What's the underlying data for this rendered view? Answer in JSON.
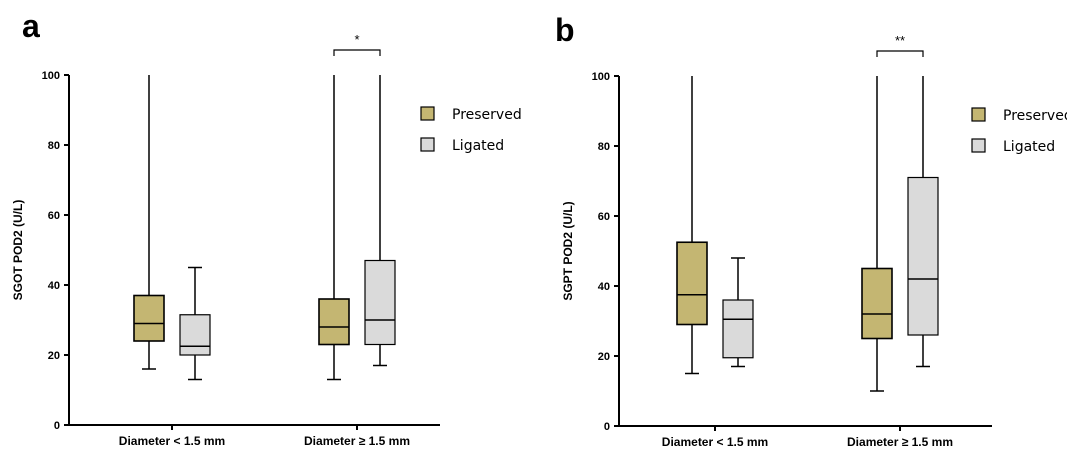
{
  "chart_data": [
    {
      "type": "box",
      "panel_letter": "a",
      "ylabel": "SGOT POD2 (U/L)",
      "ylim": [
        0,
        100
      ],
      "yticks": [
        "0",
        "20",
        "40",
        "60",
        "80",
        "100"
      ],
      "categories": [
        "Diameter < 1.5 mm",
        "Diameter ≥ 1.5 mm"
      ],
      "series": [
        {
          "name": "Preserved",
          "color": "#c4b672",
          "boxes": [
            {
              "min": 16,
              "q1": 24,
              "median": 29,
              "q3": 37,
              "max": 100
            },
            {
              "min": 13,
              "q1": 23,
              "median": 28,
              "q3": 36,
              "max": 100
            }
          ]
        },
        {
          "name": "Ligated",
          "color": "#dadada",
          "boxes": [
            {
              "min": 13,
              "q1": 20,
              "median": 22.5,
              "q3": 31.5,
              "max": 45
            },
            {
              "min": 17,
              "q1": 23,
              "median": 30,
              "q3": 47,
              "max": 100
            }
          ]
        }
      ],
      "significance": [
        {
          "category": 1,
          "label": "*"
        }
      ],
      "legend": {
        "position": "top-right",
        "items": [
          "Preserved",
          "Ligated"
        ]
      }
    },
    {
      "type": "box",
      "panel_letter": "b",
      "ylabel": "SGPT POD2 (U/L)",
      "ylim": [
        0,
        100
      ],
      "yticks": [
        "0",
        "20",
        "40",
        "60",
        "80",
        "100"
      ],
      "categories": [
        "Diameter < 1.5 mm",
        "Diameter ≥ 1.5 mm"
      ],
      "series": [
        {
          "name": "Preserved",
          "color": "#c4b672",
          "boxes": [
            {
              "min": 15,
              "q1": 29,
              "median": 37.5,
              "q3": 52.5,
              "max": 100
            },
            {
              "min": 10,
              "q1": 25,
              "median": 32,
              "q3": 45,
              "max": 100
            }
          ]
        },
        {
          "name": "Ligated",
          "color": "#dadada",
          "boxes": [
            {
              "min": 17,
              "q1": 19.5,
              "median": 30.5,
              "q3": 36,
              "max": 48
            },
            {
              "min": 17,
              "q1": 26,
              "median": 42,
              "q3": 71,
              "max": 100
            }
          ]
        }
      ],
      "significance": [
        {
          "category": 1,
          "label": "**"
        }
      ],
      "legend": {
        "position": "top-right",
        "items": [
          "Preserved",
          "Ligated"
        ]
      }
    }
  ]
}
